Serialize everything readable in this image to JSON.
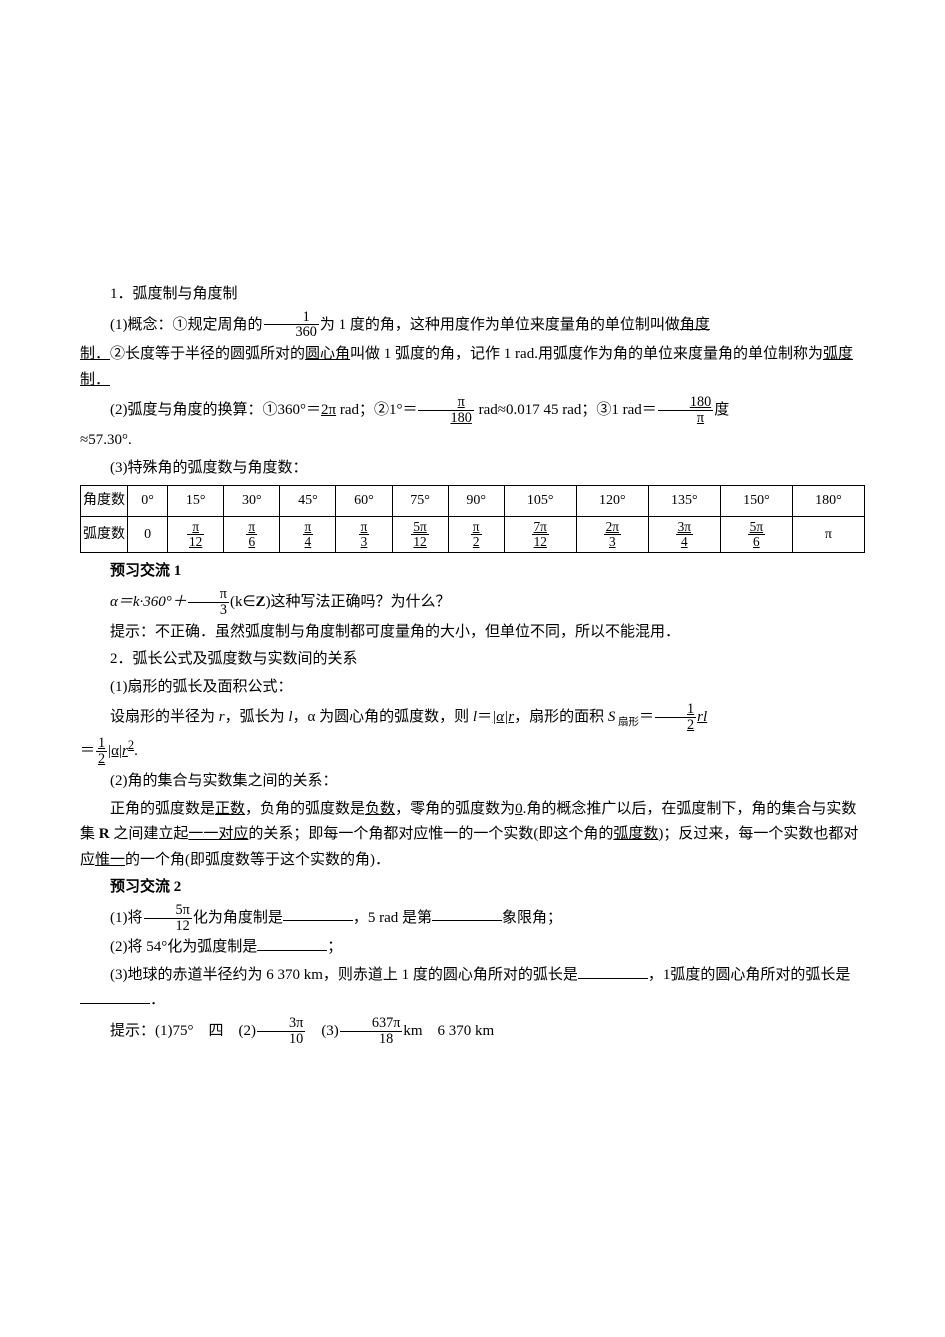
{
  "section1": {
    "title": "1．弧度制与角度制",
    "p1_a": "(1)概念：①规定周角的",
    "p1_frac_num": "1",
    "p1_frac_den": "360",
    "p1_b": "为 1 度的角，这种用度作为单位来度量角的单位制叫做",
    "p1_u1": "角度",
    "p1_c": "制．",
    "p1_d": "②长度等于半径的圆弧所对的",
    "p1_u2": "圆心角",
    "p1_e": "叫做 1 弧度的角，记作 1 rad.用弧度作为角的单位来度量角的单位制称为",
    "p1_u3": "弧度制．",
    "p2_a": "(2)弧度与角度的换算：①360°＝",
    "p2_u1": "2π",
    "p2_b": " rad；②1°＝",
    "p2_frac1_num": "π",
    "p2_frac1_den": "180",
    "p2_c": " rad≈0.017 45 rad；③1 rad＝",
    "p2_frac2_num": "180",
    "p2_frac2_den": "π",
    "p2_d": "度",
    "p2_e": "≈57.30°.",
    "p3": "(3)特殊角的弧度数与角度数："
  },
  "table": {
    "row1_label": "角度数",
    "row2_label": "弧度数",
    "degrees": [
      "0°",
      "15°",
      "30°",
      "45°",
      "60°",
      "75°",
      "90°",
      "105°",
      "120°",
      "135°",
      "150°",
      "180°"
    ],
    "radians": [
      {
        "type": "plain",
        "val": "0"
      },
      {
        "type": "frac",
        "num": "π",
        "den": "12"
      },
      {
        "type": "frac",
        "num": "π",
        "den": "6"
      },
      {
        "type": "frac",
        "num": "π",
        "den": "4"
      },
      {
        "type": "frac",
        "num": "π",
        "den": "3"
      },
      {
        "type": "frac",
        "num": "5π",
        "den": "12"
      },
      {
        "type": "frac",
        "num": "π",
        "den": "2"
      },
      {
        "type": "frac",
        "num": "7π",
        "den": "12"
      },
      {
        "type": "frac",
        "num": "2π",
        "den": "3"
      },
      {
        "type": "frac",
        "num": "3π",
        "den": "4"
      },
      {
        "type": "frac",
        "num": "5π",
        "den": "6"
      },
      {
        "type": "plain",
        "val": "π"
      }
    ]
  },
  "preview1": {
    "title": "预习交流 1",
    "q_a": "α＝k·360°＋",
    "q_frac_num": "π",
    "q_frac_den": "3",
    "q_b": "(k∈",
    "q_z": "Z",
    "q_c": ")这种写法正确吗？为什么？",
    "ans": "提示：不正确．虽然弧度制与角度制都可度量角的大小，但单位不同，所以不能混用．"
  },
  "section2": {
    "title": "2．弧长公式及弧度数与实数间的关系",
    "p1": "(1)扇形的弧长及面积公式：",
    "p2_a": "设扇形的半径为 ",
    "p2_r": "r",
    "p2_b": "，弧长为 ",
    "p2_l": "l",
    "p2_c": "，α 为圆心角的弧度数，则 ",
    "p2_l2": "l",
    "p2_d": "＝",
    "p2_u1": "|α|r",
    "p2_e": "，扇形的面积 ",
    "p2_S": "S",
    "p2_sub": " 扇形",
    "p2_f": "＝",
    "p2_frac1_num": "1",
    "p2_frac1_den": "2",
    "p2_rl": "rl",
    "p2_line2a": "＝",
    "p2_frac2_num": "1",
    "p2_frac2_den": "2",
    "p2_line2b": "|α|",
    "p2_r2": "r",
    "p2_sq": "2",
    "p2_dot": ".",
    "p3": "(2)角的集合与实数集之间的关系：",
    "p4_a": "正角的弧度数是",
    "p4_u1": "正数",
    "p4_b": "，负角的弧度数是",
    "p4_u2": "负数",
    "p4_c": "，零角的弧度数为",
    "p4_u3": "0",
    "p4_d": ".角的概念推广以后，在弧度制下，角的集合与实数集 ",
    "p4_R": "R",
    "p4_e": " 之间建立起",
    "p4_u4": "一一对应",
    "p4_f": "的关系；即每一个角都对应惟一的一个实数(即这个角的",
    "p4_u5": "弧度数",
    "p4_g": ")；反过来，每一个实数也都对应",
    "p4_u6": "惟一",
    "p4_h": "的一个角(即弧度数等于这个实数的角)．"
  },
  "preview2": {
    "title": "预习交流 2",
    "q1_a": "(1)将",
    "q1_frac_num": "5π",
    "q1_frac_den": "12",
    "q1_b": "化为角度制是",
    "q1_c": "，5 rad 是第",
    "q1_d": "象限角；",
    "q2_a": "(2)将 54°化为弧度制是",
    "q2_b": "；",
    "q3_a": "(3)地球的赤道半径约为 6 370 km，则赤道上 1 度的圆心角所对的弧长是",
    "q3_b": "，1弧度的圆心角所对的弧长是",
    "q3_c": "．",
    "ans_a": "提示：(1)75°　四　(2)",
    "ans_frac1_num": "3π",
    "ans_frac1_den": "10",
    "ans_b": "　(3)",
    "ans_frac2_num": "637π",
    "ans_frac2_den": "18",
    "ans_c": "km　6 370 km"
  }
}
